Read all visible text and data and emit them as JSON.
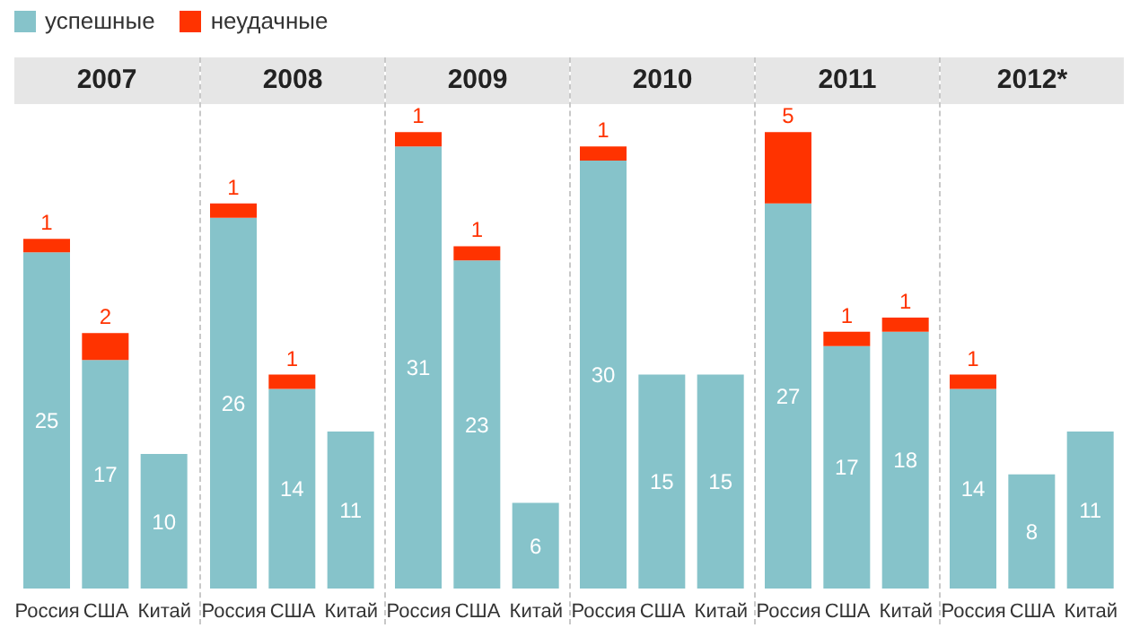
{
  "chart_data": [
    {
      "type": "bar",
      "title": "2007",
      "stacked": true,
      "data_labels": true,
      "legend": "top",
      "tick_labels": "x",
      "categories": [
        "Россия",
        "США",
        "Китай"
      ],
      "series": [
        {
          "name": "успешные",
          "color": "#86c3ca",
          "values": [
            25,
            17,
            10
          ]
        },
        {
          "name": "неудачные",
          "color": "#ff3300",
          "values": [
            1,
            2,
            null
          ]
        }
      ]
    },
    {
      "type": "bar",
      "title": "2008",
      "stacked": true,
      "data_labels": true,
      "tick_labels": "x",
      "categories": [
        "Россия",
        "США",
        "Китай"
      ],
      "series": [
        {
          "color": "#86c3ca",
          "values": [
            26,
            14,
            11
          ]
        },
        {
          "color": "#ff3300",
          "values": [
            1,
            1,
            null
          ]
        }
      ]
    },
    {
      "type": "bar",
      "title": "2009",
      "stacked": true,
      "data_labels": true,
      "tick_labels": "x",
      "categories": [
        "Россия",
        "США",
        "Китай"
      ],
      "series": [
        {
          "color": "#86c3ca",
          "values": [
            31,
            23,
            6
          ]
        },
        {
          "color": "#ff3300",
          "values": [
            1,
            1,
            null
          ]
        }
      ]
    },
    {
      "type": "bar",
      "title": "2010",
      "stacked": true,
      "data_labels": true,
      "tick_labels": "x",
      "categories": [
        "Россия",
        "США",
        "Китай"
      ],
      "series": [
        {
          "color": "#86c3ca",
          "values": [
            30,
            15,
            15
          ]
        },
        {
          "color": "#ff3300",
          "values": [
            1,
            null,
            null
          ]
        }
      ]
    },
    {
      "type": "bar",
      "title": "2011",
      "stacked": true,
      "data_labels": true,
      "tick_labels": "x",
      "categories": [
        "Россия",
        "США",
        "Китай"
      ],
      "series": [
        {
          "color": "#86c3ca",
          "values": [
            27,
            17,
            18
          ]
        },
        {
          "color": "#ff3300",
          "values": [
            5,
            1,
            1
          ]
        }
      ]
    },
    {
      "type": "bar",
      "title": "2012*",
      "stacked": true,
      "data_labels": true,
      "tick_labels": "x",
      "categories": [
        "Россия",
        "США",
        "Китай"
      ],
      "series": [
        {
          "color": "#86c3ca",
          "values": [
            14,
            8,
            11
          ]
        },
        {
          "color": "#ff3300",
          "values": [
            1,
            null,
            null
          ]
        }
      ]
    }
  ]
}
